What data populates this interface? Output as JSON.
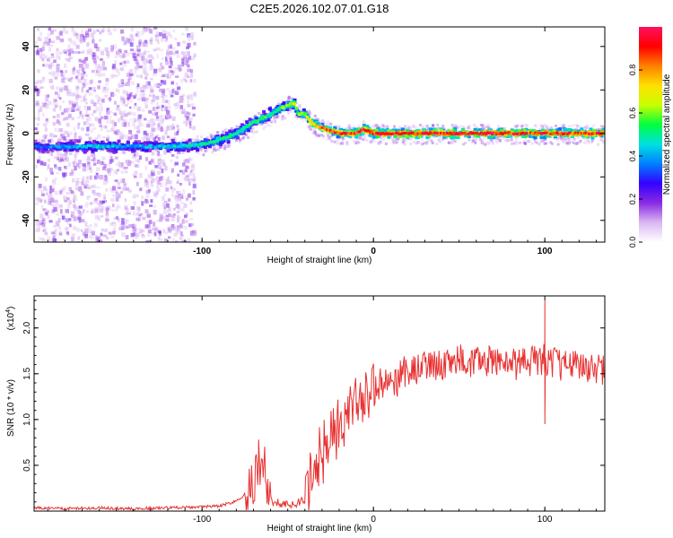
{
  "title": "C2E5.2026.102.07.01.G18",
  "chart_data": [
    {
      "type": "heatmap",
      "xlabel": "Height of straight line (km)",
      "ylabel": "Frequency (Hz)",
      "xlim": [
        -198,
        135
      ],
      "ylim": [
        -50,
        49
      ],
      "xticks": [
        -100,
        0,
        100
      ],
      "yticks": [
        40,
        20,
        0,
        -20,
        -40
      ],
      "xtick_labels": [
        "-100",
        "0",
        "100"
      ],
      "ytick_labels": [
        "40",
        "20",
        "0",
        "-20",
        "-40"
      ],
      "colorbar": {
        "label": "Normalized spectral amplitude",
        "range": [
          0,
          1
        ],
        "ticks": [
          0,
          0.2,
          0.4,
          0.6,
          0.8
        ],
        "tick_labels": [
          "0.0",
          "0.2",
          "0.4",
          "0.6",
          "0.8"
        ],
        "colors": [
          "#ffffff",
          "#d9b8f2",
          "#8a2be2",
          "#3300ff",
          "#0080ff",
          "#00e0e0",
          "#00ff40",
          "#c8ff00",
          "#ffe000",
          "#ff8000",
          "#ff0000",
          "#ff1060"
        ]
      },
      "ridge": {
        "height_km": [
          -198,
          -180,
          -160,
          -140,
          -120,
          -100,
          -90,
          -80,
          -70,
          -60,
          -50,
          -46,
          -44,
          -40,
          -36,
          -32,
          -28,
          -24,
          -20,
          -15,
          -10,
          -6,
          -3,
          0,
          20,
          60,
          100,
          135
        ],
        "frequency_hz": [
          -6,
          -6,
          -6,
          -6,
          -6,
          -5,
          -3,
          0,
          5,
          9,
          13,
          14,
          9,
          9,
          5,
          3,
          2,
          1,
          0,
          0,
          0,
          2,
          1,
          0,
          0,
          0,
          0,
          0
        ],
        "amplitude": [
          0.35,
          0.4,
          0.45,
          0.4,
          0.45,
          0.5,
          0.55,
          0.5,
          0.55,
          0.55,
          0.6,
          0.65,
          0.6,
          0.65,
          0.75,
          0.8,
          0.85,
          0.88,
          0.9,
          0.92,
          0.92,
          0.95,
          0.95,
          0.95,
          0.95,
          0.95,
          0.9,
          0.9
        ]
      }
    },
    {
      "type": "line",
      "xlabel": "Height of straight line (km)",
      "ylabel": "SNR (10 * v/v)",
      "multiplier_label": "(x10",
      "multiplier_exponent": "4",
      "multiplier_close": ")",
      "xlim": [
        -198,
        135
      ],
      "ylim": [
        0,
        2.35
      ],
      "xticks": [
        -100,
        0,
        100
      ],
      "yticks": [
        0.5,
        1.0,
        1.5,
        2.0
      ],
      "xtick_labels": [
        "-100",
        "0",
        "100"
      ],
      "ytick_labels": [
        "0.5",
        "1.0",
        "1.5",
        "2.0"
      ],
      "series": [
        {
          "name": "SNR",
          "color": "#e83030",
          "x": [
            -198,
            -180,
            -160,
            -140,
            -120,
            -100,
            -90,
            -80,
            -75,
            -70,
            -66,
            -64,
            -62,
            -60,
            -55,
            -50,
            -45,
            -40,
            -37,
            -34,
            -30,
            -27,
            -24,
            -20,
            -15,
            -10,
            -5,
            0,
            5,
            10,
            15,
            20,
            25,
            30,
            40,
            50,
            60,
            70,
            80,
            90,
            100,
            110,
            120,
            135
          ],
          "y": [
            0.03,
            0.02,
            0.03,
            0.02,
            0.03,
            0.04,
            0.05,
            0.1,
            0.18,
            0.3,
            0.5,
            0.55,
            0.3,
            0.12,
            0.08,
            0.06,
            0.08,
            0.12,
            0.3,
            0.55,
            0.6,
            0.75,
            0.8,
            0.95,
            1.05,
            1.15,
            1.25,
            1.3,
            1.4,
            1.35,
            1.45,
            1.55,
            1.55,
            1.58,
            1.6,
            1.65,
            1.62,
            1.65,
            1.6,
            1.62,
            1.65,
            1.6,
            1.6,
            1.55
          ],
          "annotations": [
            {
              "x": -67,
              "y": 0.78
            },
            {
              "x": 100,
              "y": 2.3
            },
            {
              "x": 100,
              "y": 0.95
            }
          ]
        }
      ]
    }
  ]
}
